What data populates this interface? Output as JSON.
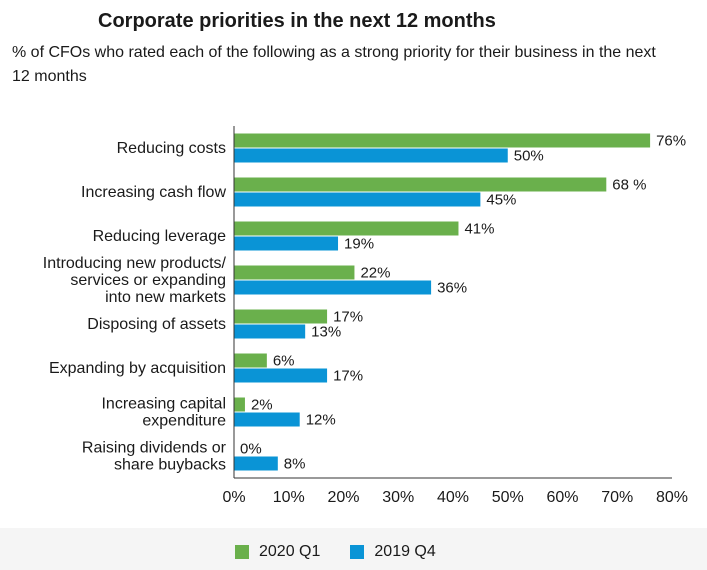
{
  "chart_data": {
    "type": "bar",
    "orientation": "horizontal",
    "title": "Corporate priorities in the next 12 months",
    "subtitle": "% of CFOs who rated each of the following as a strong priority for their business in the next 12 months",
    "categories": [
      [
        "Reducing costs"
      ],
      [
        "Increasing cash flow"
      ],
      [
        "Reducing leverage"
      ],
      [
        "Introducing new products/",
        "services or expanding",
        "into new markets"
      ],
      [
        "Disposing of assets"
      ],
      [
        "Expanding by acquisition"
      ],
      [
        "Increasing capital",
        "expenditure"
      ],
      [
        "Raising dividends or",
        "share buybacks"
      ]
    ],
    "series": [
      {
        "name": "2020 Q1",
        "color": "#6ab04c",
        "values": [
          76,
          68,
          41,
          22,
          17,
          6,
          2,
          0
        ],
        "labels": [
          "76%",
          "68 %",
          "41%",
          "22%",
          "17%",
          "6%",
          "2%",
          "0%"
        ]
      },
      {
        "name": "2019 Q4",
        "color": "#0a94d6",
        "values": [
          50,
          45,
          19,
          36,
          13,
          17,
          12,
          8
        ],
        "labels": [
          "50%",
          "45%",
          "19%",
          "36%",
          "13%",
          "17%",
          "12%",
          "8%"
        ]
      }
    ],
    "xlim": [
      0,
      80
    ],
    "xticks": [
      "0%",
      "10%",
      "20%",
      "30%",
      "40%",
      "50%",
      "60%",
      "70%",
      "80%"
    ],
    "grid": false,
    "legend_position": "bottom"
  }
}
